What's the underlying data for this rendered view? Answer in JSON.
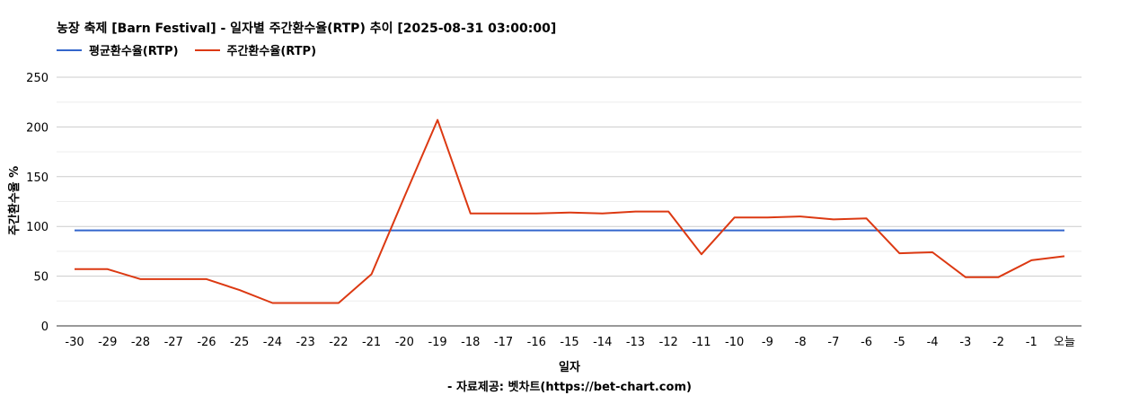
{
  "chart_data": {
    "type": "line",
    "title": "농장 축제 [Barn Festival] - 일자별 주간환수율(RTP) 추이 [2025-08-31 03:00:00]",
    "xlabel": "일자",
    "ylabel": "주간환수율 %",
    "ylim": [
      0,
      250
    ],
    "yticks": [
      0,
      50,
      100,
      150,
      200,
      250
    ],
    "grid": true,
    "legend_position": "top-left",
    "categories": [
      "-30",
      "-29",
      "-28",
      "-27",
      "-26",
      "-25",
      "-24",
      "-23",
      "-22",
      "-21",
      "-20",
      "-19",
      "-18",
      "-17",
      "-16",
      "-15",
      "-14",
      "-13",
      "-12",
      "-11",
      "-10",
      "-9",
      "-8",
      "-7",
      "-6",
      "-5",
      "-4",
      "-3",
      "-2",
      "-1",
      "오늘"
    ],
    "series": [
      {
        "name": "평균환수율(RTP)",
        "color": "#3366cc",
        "values": [
          96,
          96,
          96,
          96,
          96,
          96,
          96,
          96,
          96,
          96,
          96,
          96,
          96,
          96,
          96,
          96,
          96,
          96,
          96,
          96,
          96,
          96,
          96,
          96,
          96,
          96,
          96,
          96,
          96,
          96,
          96
        ]
      },
      {
        "name": "주간환수율(RTP)",
        "color": "#dc3912",
        "values": [
          57,
          57,
          47,
          47,
          47,
          36,
          23,
          23,
          23,
          52,
          130,
          207,
          113,
          113,
          113,
          114,
          113,
          115,
          115,
          72,
          109,
          109,
          110,
          107,
          108,
          73,
          74,
          49,
          49,
          66,
          70
        ]
      }
    ]
  },
  "source_note": "- 자료제공: 벳차트(https://bet-chart.com)"
}
